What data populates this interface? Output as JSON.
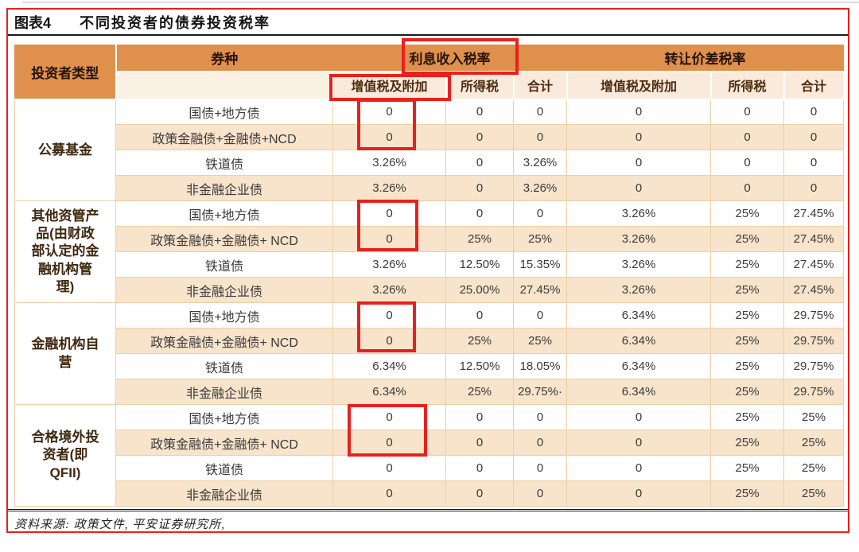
{
  "figure": {
    "label": "图表4",
    "title": "不同投资者的债券投资税率",
    "source": "资料来源: 政策文件, 平安证券研究所,"
  },
  "table": {
    "header": {
      "investor_type": "投资者类型",
      "bond_type": "券种",
      "interest_income_tax": "利息收入税率",
      "transfer_spread_tax": "转让价差税率",
      "sub": [
        "增值税及附加",
        "所得税",
        "合计",
        "增值税及附加",
        "所得税",
        "合计"
      ]
    },
    "groups": [
      {
        "investor": "公募基金",
        "rows": [
          {
            "bond": "国债+地方债",
            "values": [
              "0",
              "0",
              "0",
              "0",
              "0",
              "0"
            ]
          },
          {
            "bond": "政策金融债+金融债+NCD",
            "values": [
              "0",
              "0",
              "0",
              "0",
              "0",
              "0"
            ]
          },
          {
            "bond": "铁道债",
            "values": [
              "3.26%",
              "0",
              "3.26%",
              "0",
              "0",
              "0"
            ]
          },
          {
            "bond": "非金融企业债",
            "values": [
              "3.26%",
              "0",
              "3.26%",
              "0",
              "0",
              "0"
            ]
          }
        ]
      },
      {
        "investor": "其他资管产\n品(由财政\n部认定的金\n融机构管\n理)",
        "rows": [
          {
            "bond": "国债+地方债",
            "values": [
              "0",
              "0",
              "0",
              "3.26%",
              "25%",
              "27.45%"
            ]
          },
          {
            "bond": "政策金融债+金融债+ NCD",
            "values": [
              "0",
              "25%",
              "25%",
              "3.26%",
              "25%",
              "27.45%"
            ]
          },
          {
            "bond": "铁道债",
            "values": [
              "3.26%",
              "12.50%",
              "15.35%",
              "3.26%",
              "25%",
              "27.45%"
            ]
          },
          {
            "bond": "非金融企业债",
            "values": [
              "3.26%",
              "25.00%",
              "27.45%",
              "3.26%",
              "25%",
              "27.45%"
            ]
          }
        ]
      },
      {
        "investor": "金融机构自\n营",
        "rows": [
          {
            "bond": "国债+地方债",
            "values": [
              "0",
              "0",
              "0",
              "6.34%",
              "25%",
              "29.75%"
            ]
          },
          {
            "bond": "政策金融债+金融债+ NCD",
            "values": [
              "0",
              "25%",
              "25%",
              "6.34%",
              "25%",
              "29.75%"
            ]
          },
          {
            "bond": "铁道债",
            "values": [
              "6.34%",
              "12.50%",
              "18.05%",
              "6.34%",
              "25%",
              "29.75%"
            ]
          },
          {
            "bond": "非金融企业债",
            "values": [
              "6.34%",
              "25%",
              "29.75%·",
              "6.34%",
              "25%",
              "29.75%"
            ]
          }
        ]
      },
      {
        "investor": "合格境外投\n资者(即\nQFII)",
        "rows": [
          {
            "bond": "国债+地方债",
            "values": [
              "0",
              "0",
              "0",
              "0",
              "25%",
              "25%"
            ]
          },
          {
            "bond": "政策金融债+金融债+ NCD",
            "values": [
              "0",
              "0",
              "0",
              "0",
              "25%",
              "25%"
            ]
          },
          {
            "bond": "铁道债",
            "values": [
              "0",
              "0",
              "0",
              "0",
              "25%",
              "25%"
            ]
          },
          {
            "bond": "非金融企业债",
            "values": [
              "0",
              "0",
              "0",
              "0",
              "25%",
              "25%"
            ]
          }
        ]
      }
    ]
  },
  "annotations": {
    "highlighted": [
      "header-interest-income-tax",
      "header-vat-and-surcharge",
      "group1-vat-zero-cells",
      "group2-vat-zero-cells",
      "group3-vat-zero-cells",
      "group4-vat-zero-cells"
    ]
  },
  "colors": {
    "header_orange": "#df904c",
    "header_cream": "#faeadb",
    "row_peach": "#f8e3cb",
    "annotation_red": "#e8201e"
  }
}
